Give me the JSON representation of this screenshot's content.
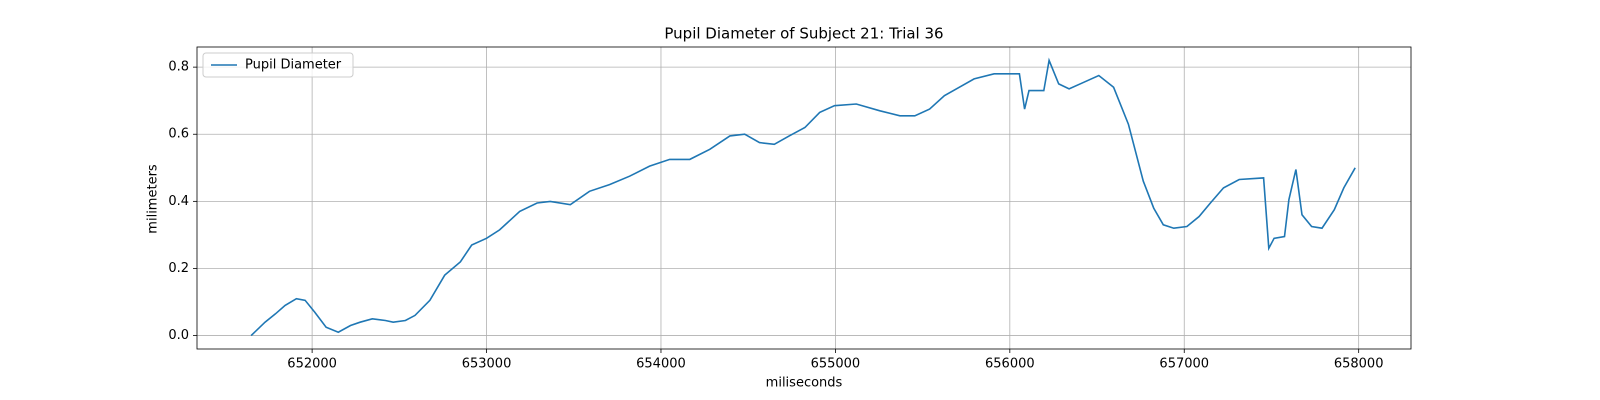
{
  "chart_data": {
    "type": "line",
    "title": "Pupil Diameter of Subject 21: Trial 36",
    "xlabel": "miliseconds",
    "ylabel": "milimeters",
    "x": [
      651650,
      651730,
      651790,
      651845,
      651910,
      651960,
      652015,
      652080,
      652150,
      652220,
      652275,
      652345,
      652420,
      652465,
      652535,
      652590,
      652675,
      652760,
      652850,
      652915,
      653000,
      653075,
      653190,
      653290,
      653365,
      653480,
      653590,
      653705,
      653820,
      653935,
      654050,
      654165,
      654280,
      654395,
      654480,
      654565,
      654650,
      654735,
      654825,
      654910,
      654995,
      655120,
      655255,
      655370,
      655455,
      655540,
      655625,
      655710,
      655795,
      655910,
      655985,
      656055,
      656085,
      656110,
      656195,
      656225,
      656280,
      656340,
      656425,
      656510,
      656595,
      656680,
      656765,
      656825,
      656880,
      656940,
      657015,
      657085,
      657150,
      657225,
      657315,
      657455,
      657485,
      657515,
      657575,
      657600,
      657640,
      657675,
      657730,
      657790,
      657860,
      657915,
      657980
    ],
    "series": [
      {
        "name": "Pupil Diameter",
        "color": "#1f77b4",
        "values": [
          0,
          0.04,
          0.065,
          0.09,
          0.11,
          0.105,
          0.07,
          0.025,
          0.01,
          0.03,
          0.04,
          0.05,
          0.045,
          0.04,
          0.045,
          0.06,
          0.105,
          0.18,
          0.22,
          0.27,
          0.29,
          0.315,
          0.37,
          0.395,
          0.4,
          0.39,
          0.43,
          0.45,
          0.475,
          0.505,
          0.525,
          0.525,
          0.555,
          0.595,
          0.6,
          0.575,
          0.57,
          0.595,
          0.62,
          0.665,
          0.685,
          0.69,
          0.67,
          0.655,
          0.655,
          0.675,
          0.715,
          0.74,
          0.765,
          0.78,
          0.78,
          0.78,
          0.675,
          0.73,
          0.73,
          0.82,
          0.75,
          0.735,
          0.755,
          0.775,
          0.74,
          0.63,
          0.46,
          0.38,
          0.33,
          0.32,
          0.325,
          0.355,
          0.395,
          0.44,
          0.465,
          0.47,
          0.26,
          0.29,
          0.295,
          0.405,
          0.495,
          0.36,
          0.325,
          0.32,
          0.375,
          0.44,
          0.5
        ]
      }
    ],
    "xlim": [
      651340,
      658300
    ],
    "ylim": [
      -0.04,
      0.86
    ],
    "xticks": [
      652000,
      653000,
      654000,
      655000,
      656000,
      657000,
      658000
    ],
    "yticks": [
      {
        "value": 0,
        "label": "0.0"
      },
      0.2,
      0.4,
      0.6,
      0.8
    ],
    "grid": true,
    "legend": "upper left"
  }
}
